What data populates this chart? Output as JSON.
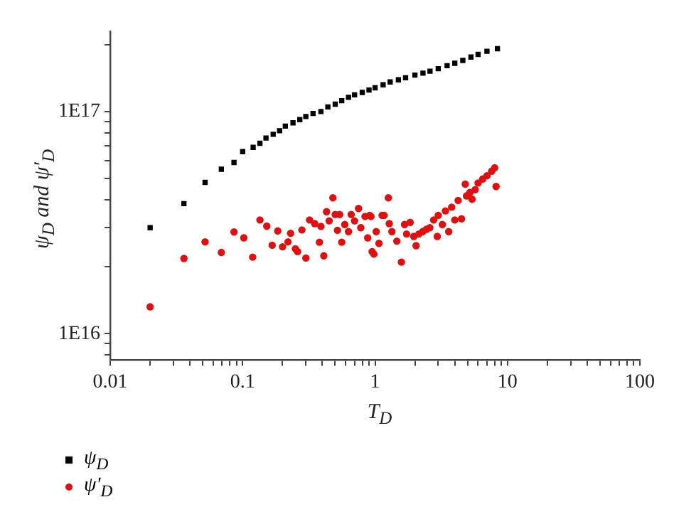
{
  "chart_data": {
    "type": "scatter",
    "xlabel": "T$_{D}$",
    "ylabel": "ψ$_{D}$ and ψ′$_{D}$",
    "log": "xy",
    "xlim": [
      0.01,
      100
    ],
    "ylim": [
      7600000000000000.0,
      2.3e+17
    ],
    "xticks": [
      0.01,
      {
        "value": 0.02,
        "label": null
      },
      {
        "value": 0.03,
        "label": null
      },
      {
        "value": 0.04,
        "label": null
      },
      {
        "value": 0.05,
        "label": null
      },
      {
        "value": 0.06,
        "label": null
      },
      {
        "value": 0.07,
        "label": null
      },
      {
        "value": 0.08,
        "label": null
      },
      {
        "value": 0.09,
        "label": null
      },
      0.1,
      {
        "value": 0.2,
        "label": null
      },
      {
        "value": 0.3,
        "label": null
      },
      {
        "value": 0.4,
        "label": null
      },
      {
        "value": 0.5,
        "label": null
      },
      {
        "value": 0.6,
        "label": null
      },
      {
        "value": 0.7,
        "label": null
      },
      {
        "value": 0.8,
        "label": null
      },
      {
        "value": 0.9,
        "label": null
      },
      1,
      {
        "value": 2,
        "label": null
      },
      {
        "value": 3,
        "label": null
      },
      {
        "value": 4,
        "label": null
      },
      {
        "value": 5,
        "label": null
      },
      {
        "value": 6,
        "label": null
      },
      {
        "value": 7,
        "label": null
      },
      {
        "value": 8,
        "label": null
      },
      {
        "value": 9,
        "label": null
      },
      10,
      {
        "value": 20,
        "label": null
      },
      {
        "value": 30,
        "label": null
      },
      {
        "value": 40,
        "label": null
      },
      {
        "value": 50,
        "label": null
      },
      {
        "value": 60,
        "label": null
      },
      {
        "value": 70,
        "label": null
      },
      {
        "value": 80,
        "label": null
      },
      {
        "value": 90,
        "label": null
      },
      100
    ],
    "yticks": [
      {
        "value": 8000000000000000.0,
        "label": null
      },
      {
        "value": 9000000000000000.0,
        "label": null
      },
      {
        "value": 1e+16,
        "label": "1E16"
      },
      {
        "value": 2e+16,
        "label": null
      },
      {
        "value": 3e+16,
        "label": null
      },
      {
        "value": 4e+16,
        "label": null
      },
      {
        "value": 5e+16,
        "label": null
      },
      {
        "value": 6e+16,
        "label": null
      },
      {
        "value": 7e+16,
        "label": null
      },
      {
        "value": 8e+16,
        "label": null
      },
      {
        "value": 9e+16,
        "label": null
      },
      {
        "value": 1e+17,
        "label": "1E17"
      },
      {
        "value": 2e+17,
        "label": null
      }
    ],
    "grid": false,
    "legend": "bottom left",
    "series": [
      {
        "name": "ψ$_{D}$",
        "color": "#000000",
        "marker": "square",
        "x": [
          0.02,
          0.036,
          0.052,
          0.069,
          0.086,
          0.1,
          0.12,
          0.135,
          0.15,
          0.17,
          0.19,
          0.21,
          0.24,
          0.27,
          0.3,
          0.34,
          0.39,
          0.44,
          0.5,
          0.56,
          0.63,
          0.7,
          0.8,
          0.9,
          1.0,
          1.15,
          1.3,
          1.5,
          1.7,
          2.0,
          2.3,
          2.6,
          3.0,
          3.5,
          4.0,
          4.6,
          5.3,
          6.0,
          7.0,
          8.4
        ],
        "values": [
          3e+16,
          3.85e+16,
          4.8e+16,
          5.5e+16,
          5.9e+16,
          6.6e+16,
          6.9e+16,
          7.2e+16,
          7.6e+16,
          7.9e+16,
          8.2e+16,
          8.6e+16,
          8.9e+16,
          9.2e+16,
          9.5e+16,
          9.8e+16,
          1e+17,
          1.05e+17,
          1.08e+17,
          1.12e+17,
          1.16e+17,
          1.19e+17,
          1.22e+17,
          1.25e+17,
          1.28e+17,
          1.32e+17,
          1.36e+17,
          1.39e+17,
          1.42e+17,
          1.46e+17,
          1.49e+17,
          1.52e+17,
          1.56e+17,
          1.61e+17,
          1.65e+17,
          1.7e+17,
          1.76e+17,
          1.81e+17,
          1.87e+17,
          1.92e+17
        ]
      },
      {
        "name": "ψ′$_{D}$",
        "color": "#e01010",
        "marker": "circle",
        "x": [
          0.02,
          0.036,
          0.052,
          0.069,
          0.086,
          0.102,
          0.119,
          0.135,
          0.152,
          0.167,
          0.184,
          0.2,
          0.22,
          0.23,
          0.25,
          0.26,
          0.28,
          0.3,
          0.32,
          0.35,
          0.38,
          0.39,
          0.41,
          0.43,
          0.45,
          0.48,
          0.5,
          0.52,
          0.54,
          0.56,
          0.59,
          0.63,
          0.66,
          0.7,
          0.75,
          0.78,
          0.84,
          0.88,
          0.93,
          0.95,
          0.98,
          1.02,
          1.07,
          1.13,
          1.26,
          1.28,
          1.34,
          0.91,
          1.17,
          1.46,
          1.58,
          1.67,
          1.73,
          1.84,
          1.96,
          2.04,
          2.14,
          2.29,
          2.44,
          2.59,
          2.77,
          2.95,
          3.0,
          3.22,
          3.4,
          3.6,
          3.79,
          4.0,
          4.24,
          4.5,
          4.8,
          4.9,
          5.2,
          5.4,
          5.7,
          6.0,
          6.5,
          7.0,
          7.6,
          8.0,
          8.2
        ],
        "values": [
          1.32e+16,
          2.18e+16,
          2.59e+16,
          2.32e+16,
          2.87e+16,
          2.7e+16,
          2.21e+16,
          3.25e+16,
          3.05e+16,
          2.5e+16,
          2.9e+16,
          2.46e+16,
          2.59e+16,
          2.83e+16,
          2.41e+16,
          2.34e+16,
          2.93e+16,
          2.19e+16,
          3.25e+16,
          3.13e+16,
          2.58e+16,
          3.04e+16,
          2.24e+16,
          3.54e+16,
          3.22e+16,
          4.09e+16,
          3.44e+16,
          2.92e+16,
          3.44e+16,
          2.58e+16,
          3.1e+16,
          2.88e+16,
          3.44e+16,
          3.22e+16,
          3.66e+16,
          3e+16,
          3.37e+16,
          2.7e+16,
          3.37e+16,
          2.34e+16,
          2.28e+16,
          2.88e+16,
          2.55e+16,
          3.41e+16,
          4.09e+16,
          3.13e+16,
          2.88e+16,
          3.41e+16,
          3.41e+16,
          2.61e+16,
          2.1e+16,
          3.1e+16,
          2.81e+16,
          3.17e+16,
          2.74e+16,
          2.49e+16,
          2.81e+16,
          2.88e+16,
          2.95e+16,
          3e+16,
          3.25e+16,
          2.74e+16,
          3.41e+16,
          3.1e+16,
          3.57e+16,
          2.88e+16,
          3.71e+16,
          3.25e+16,
          3.98e+16,
          3.29e+16,
          4.71e+16,
          4.17e+16,
          4.32e+16,
          4.03e+16,
          4.45e+16,
          4.77e+16,
          4.97e+16,
          5.14e+16,
          5.39e+16,
          5.58e+16,
          4.6e+16
        ]
      }
    ]
  }
}
